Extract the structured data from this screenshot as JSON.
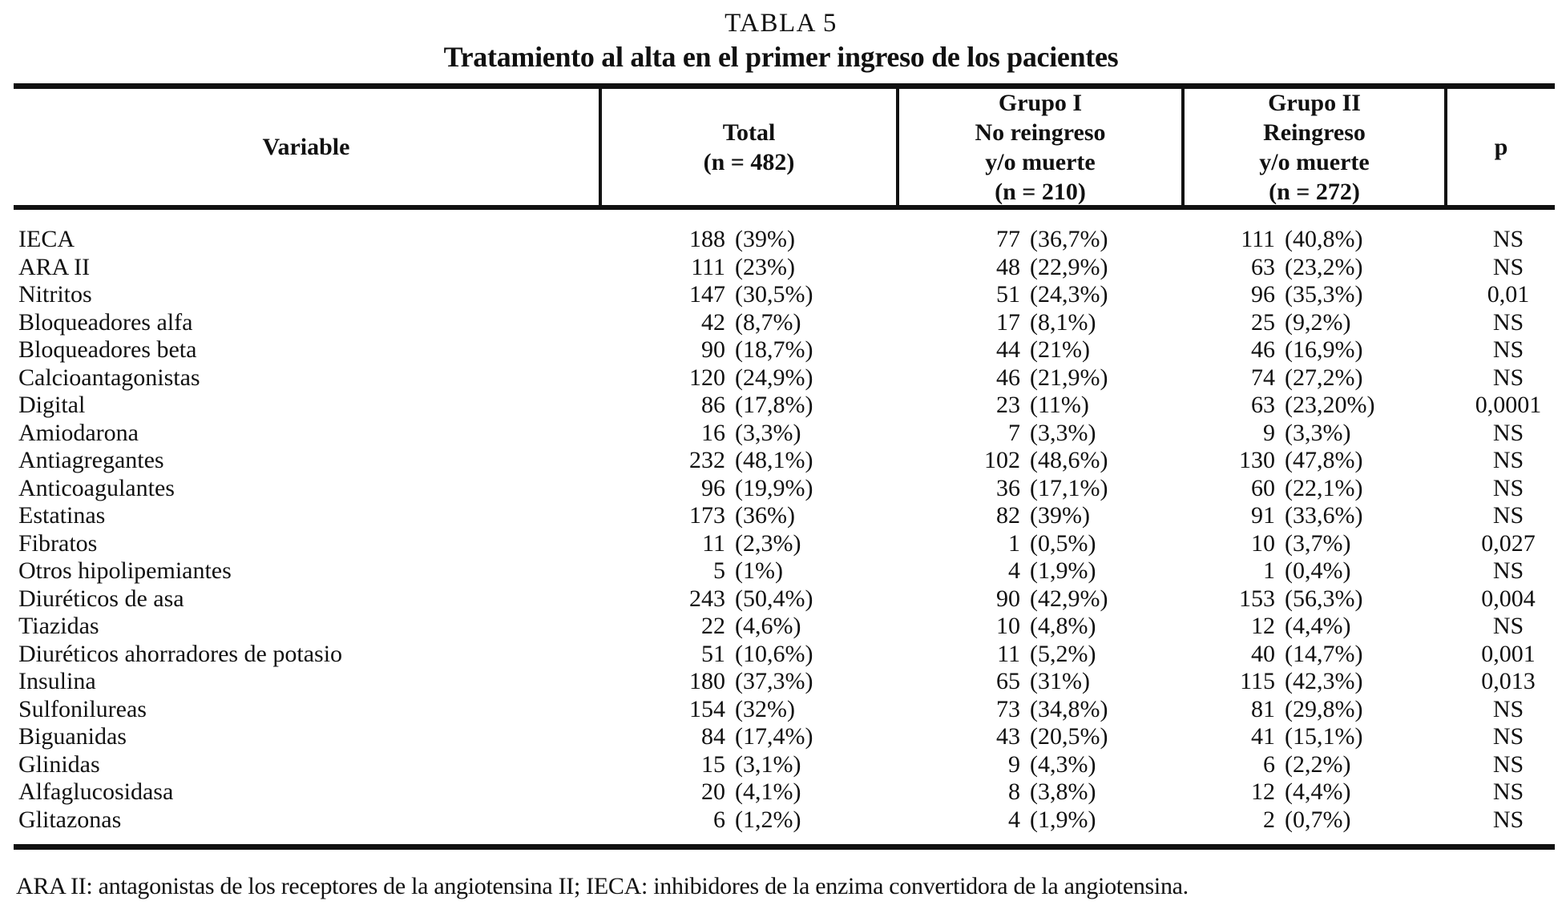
{
  "title": "TABLA 5",
  "subtitle": "Tratamiento al alta en el primer ingreso de los pacientes",
  "table": {
    "headers": {
      "variable": "Variable",
      "total": [
        "Total",
        "(n = 482)"
      ],
      "grupo1": [
        "Grupo I",
        "No reingreso",
        "y/o muerte",
        "(n = 210)"
      ],
      "grupo2": [
        "Grupo II",
        "Reingreso",
        "y/o muerte",
        "(n = 272)"
      ],
      "p": "p"
    },
    "rows": [
      {
        "variable": "IECA",
        "total_n": "188",
        "total_pct": "(39%)",
        "g1_n": "77",
        "g1_pct": "(36,7%)",
        "g2_n": "111",
        "g2_pct": "(40,8%)",
        "p": "NS"
      },
      {
        "variable": "ARA II",
        "total_n": "111",
        "total_pct": "(23%)",
        "g1_n": "48",
        "g1_pct": "(22,9%)",
        "g2_n": "63",
        "g2_pct": "(23,2%)",
        "p": "NS"
      },
      {
        "variable": "Nitritos",
        "total_n": "147",
        "total_pct": "(30,5%)",
        "g1_n": "51",
        "g1_pct": "(24,3%)",
        "g2_n": "96",
        "g2_pct": "(35,3%)",
        "p": "0,01"
      },
      {
        "variable": "Bloqueadores alfa",
        "total_n": "42",
        "total_pct": "(8,7%)",
        "g1_n": "17",
        "g1_pct": "(8,1%)",
        "g2_n": "25",
        "g2_pct": "(9,2%)",
        "p": "NS"
      },
      {
        "variable": "Bloqueadores beta",
        "total_n": "90",
        "total_pct": "(18,7%)",
        "g1_n": "44",
        "g1_pct": "(21%)",
        "g2_n": "46",
        "g2_pct": "(16,9%)",
        "p": "NS"
      },
      {
        "variable": "Calcioantagonistas",
        "total_n": "120",
        "total_pct": "(24,9%)",
        "g1_n": "46",
        "g1_pct": "(21,9%)",
        "g2_n": "74",
        "g2_pct": "(27,2%)",
        "p": "NS"
      },
      {
        "variable": "Digital",
        "total_n": "86",
        "total_pct": "(17,8%)",
        "g1_n": "23",
        "g1_pct": "(11%)",
        "g2_n": "63",
        "g2_pct": "(23,20%)",
        "p": "0,0001"
      },
      {
        "variable": "Amiodarona",
        "total_n": "16",
        "total_pct": "(3,3%)",
        "g1_n": "7",
        "g1_pct": "(3,3%)",
        "g2_n": "9",
        "g2_pct": "(3,3%)",
        "p": "NS"
      },
      {
        "variable": "Antiagregantes",
        "total_n": "232",
        "total_pct": "(48,1%)",
        "g1_n": "102",
        "g1_pct": "(48,6%)",
        "g2_n": "130",
        "g2_pct": "(47,8%)",
        "p": "NS"
      },
      {
        "variable": "Anticoagulantes",
        "total_n": "96",
        "total_pct": "(19,9%)",
        "g1_n": "36",
        "g1_pct": "(17,1%)",
        "g2_n": "60",
        "g2_pct": "(22,1%)",
        "p": "NS"
      },
      {
        "variable": "Estatinas",
        "total_n": "173",
        "total_pct": "(36%)",
        "g1_n": "82",
        "g1_pct": "(39%)",
        "g2_n": "91",
        "g2_pct": "(33,6%)",
        "p": "NS"
      },
      {
        "variable": "Fibratos",
        "total_n": "11",
        "total_pct": "(2,3%)",
        "g1_n": "1",
        "g1_pct": "(0,5%)",
        "g2_n": "10",
        "g2_pct": "(3,7%)",
        "p": "0,027"
      },
      {
        "variable": "Otros hipolipemiantes",
        "total_n": "5",
        "total_pct": "(1%)",
        "g1_n": "4",
        "g1_pct": "(1,9%)",
        "g2_n": "1",
        "g2_pct": "(0,4%)",
        "p": "NS"
      },
      {
        "variable": "Diuréticos de asa",
        "total_n": "243",
        "total_pct": "(50,4%)",
        "g1_n": "90",
        "g1_pct": "(42,9%)",
        "g2_n": "153",
        "g2_pct": "(56,3%)",
        "p": "0,004"
      },
      {
        "variable": "Tiazidas",
        "total_n": "22",
        "total_pct": "(4,6%)",
        "g1_n": "10",
        "g1_pct": "(4,8%)",
        "g2_n": "12",
        "g2_pct": "(4,4%)",
        "p": "NS"
      },
      {
        "variable": "Diuréticos ahorradores de potasio",
        "total_n": "51",
        "total_pct": "(10,6%)",
        "g1_n": "11",
        "g1_pct": "(5,2%)",
        "g2_n": "40",
        "g2_pct": "(14,7%)",
        "p": "0,001"
      },
      {
        "variable": "Insulina",
        "total_n": "180",
        "total_pct": "(37,3%)",
        "g1_n": "65",
        "g1_pct": "(31%)",
        "g2_n": "115",
        "g2_pct": "(42,3%)",
        "p": "0,013"
      },
      {
        "variable": "Sulfonilureas",
        "total_n": "154",
        "total_pct": "(32%)",
        "g1_n": "73",
        "g1_pct": "(34,8%)",
        "g2_n": "81",
        "g2_pct": "(29,8%)",
        "p": "NS"
      },
      {
        "variable": "Biguanidas",
        "total_n": "84",
        "total_pct": "(17,4%)",
        "g1_n": "43",
        "g1_pct": "(20,5%)",
        "g2_n": "41",
        "g2_pct": "(15,1%)",
        "p": "NS"
      },
      {
        "variable": "Glinidas",
        "total_n": "15",
        "total_pct": "(3,1%)",
        "g1_n": "9",
        "g1_pct": "(4,3%)",
        "g2_n": "6",
        "g2_pct": "(2,2%)",
        "p": "NS"
      },
      {
        "variable": "Alfaglucosidasa",
        "total_n": "20",
        "total_pct": "(4,1%)",
        "g1_n": "8",
        "g1_pct": "(3,8%)",
        "g2_n": "12",
        "g2_pct": "(4,4%)",
        "p": "NS"
      },
      {
        "variable": "Glitazonas",
        "total_n": "6",
        "total_pct": "(1,2%)",
        "g1_n": "4",
        "g1_pct": "(1,9%)",
        "g2_n": "2",
        "g2_pct": "(0,7%)",
        "p": "NS"
      }
    ]
  },
  "footnote": "ARA II: antagonistas de los receptores de la angiotensina II; IECA: inhibidores de la enzima convertidora de la angiotensina."
}
